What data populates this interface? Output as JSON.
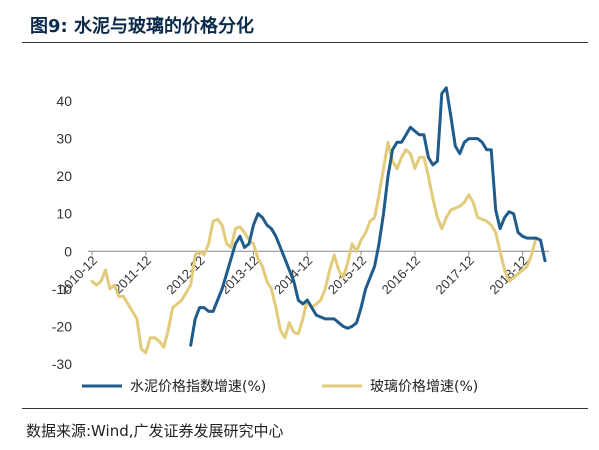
{
  "header": {
    "title": "图9:  水泥与玻璃的价格分化"
  },
  "footer": {
    "source": "数据来源:Wind,广发证券发展研究中心"
  },
  "chart_data": {
    "type": "line",
    "title": "",
    "xlabel": "",
    "ylabel": "",
    "ylim": [
      -30,
      45
    ],
    "yticks": [
      40,
      30,
      20,
      10,
      0,
      -10,
      -20,
      -30
    ],
    "x_tick_labels": [
      "2010-12",
      "2011-12",
      "2012-12",
      "2013-12",
      "2014-12",
      "2015-12",
      "2016-12",
      "2017-12",
      "2018-12"
    ],
    "x_start": "2010-12",
    "grid": false,
    "legend": "bottom",
    "series": [
      {
        "name": "水泥价格指数增速(%)",
        "color": "#1f5c8c",
        "start_index": 22,
        "values": [
          -25,
          -18,
          -15,
          -15,
          -16,
          -16,
          -13,
          -10,
          -6,
          -2,
          2,
          4,
          1,
          2,
          7,
          10,
          9,
          7,
          6,
          4,
          1,
          -2,
          -5,
          -8,
          -13,
          -14,
          -13,
          -15,
          -17,
          -17.5,
          -18,
          -18,
          -18,
          -19,
          -20,
          -20.5,
          -20,
          -19,
          -15,
          -10,
          -7,
          -4,
          2,
          10,
          20,
          27,
          29,
          29,
          31,
          33,
          32,
          31,
          31,
          25,
          23,
          24,
          42,
          43.5,
          36,
          28,
          26,
          29,
          30,
          30,
          30,
          29,
          27,
          27,
          11,
          6,
          9,
          10.5,
          10,
          5,
          4,
          3.5,
          3.5,
          3.5,
          3,
          -2.5
        ]
      },
      {
        "name": "玻璃价格增速(%)",
        "color": "#e2cb7a",
        "start_index": 0,
        "values": [
          -8,
          -9,
          -8,
          -5,
          -10,
          -9,
          -12,
          -12,
          -14,
          -16,
          -18,
          -26,
          -27,
          -23,
          -23,
          -24,
          -25.5,
          -21,
          -15,
          -14,
          -13,
          -11,
          -9,
          -1,
          0,
          -1,
          2,
          8,
          8.5,
          7,
          2,
          1,
          6,
          6.5,
          5,
          3,
          2,
          -2,
          -4,
          -8,
          -10,
          -15,
          -21,
          -23,
          -19,
          -21.5,
          -22,
          -18,
          -13,
          -15,
          -14,
          -13,
          -10,
          -5,
          -1,
          -5,
          -7,
          -3,
          2,
          0,
          3,
          5,
          8,
          9,
          15,
          22,
          29,
          24,
          22,
          25,
          27,
          26,
          22,
          25,
          25,
          20,
          14,
          9,
          6,
          9,
          11,
          11.5,
          12,
          13,
          15,
          13,
          9,
          8.5,
          8,
          7,
          5,
          0,
          -5,
          -8,
          -7,
          -6,
          -5,
          -4,
          -1,
          3.5
        ]
      }
    ]
  }
}
